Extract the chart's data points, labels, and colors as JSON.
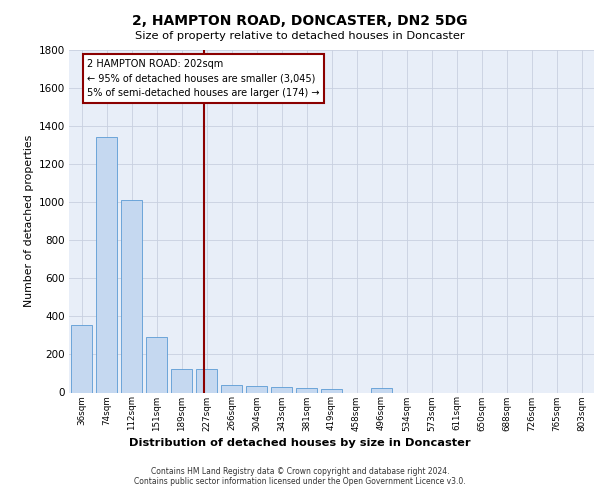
{
  "title1": "2, HAMPTON ROAD, DONCASTER, DN2 5DG",
  "title2": "Size of property relative to detached houses in Doncaster",
  "xlabel": "Distribution of detached houses by size in Doncaster",
  "ylabel": "Number of detached properties",
  "bar_labels": [
    "36sqm",
    "74sqm",
    "112sqm",
    "151sqm",
    "189sqm",
    "227sqm",
    "266sqm",
    "304sqm",
    "343sqm",
    "381sqm",
    "419sqm",
    "458sqm",
    "496sqm",
    "534sqm",
    "573sqm",
    "611sqm",
    "650sqm",
    "688sqm",
    "726sqm",
    "765sqm",
    "803sqm"
  ],
  "bar_values": [
    355,
    1345,
    1010,
    290,
    125,
    125,
    42,
    35,
    30,
    22,
    18,
    0,
    22,
    0,
    0,
    0,
    0,
    0,
    0,
    0,
    0
  ],
  "bar_color": "#c5d8f0",
  "bar_edge_color": "#5b9bd5",
  "property_line_x": 4.88,
  "property_line_color": "#8b0000",
  "annotation_text": "2 HAMPTON ROAD: 202sqm\n← 95% of detached houses are smaller (3,045)\n5% of semi-detached houses are larger (174) →",
  "annotation_box_color": "#8b0000",
  "ylim": [
    0,
    1800
  ],
  "yticks": [
    0,
    200,
    400,
    600,
    800,
    1000,
    1200,
    1400,
    1600,
    1800
  ],
  "bg_color": "#e8eef8",
  "grid_color": "#c8d0e0",
  "footer_line1": "Contains HM Land Registry data © Crown copyright and database right 2024.",
  "footer_line2": "Contains public sector information licensed under the Open Government Licence v3.0."
}
